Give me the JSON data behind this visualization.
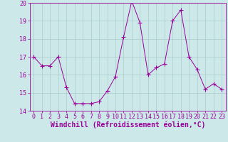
{
  "x": [
    0,
    1,
    2,
    3,
    4,
    5,
    6,
    7,
    8,
    9,
    10,
    11,
    12,
    13,
    14,
    15,
    16,
    17,
    18,
    19,
    20,
    21,
    22,
    23
  ],
  "y": [
    17.0,
    16.5,
    16.5,
    17.0,
    15.3,
    14.4,
    14.4,
    14.4,
    14.5,
    15.1,
    15.9,
    18.1,
    20.1,
    18.9,
    16.0,
    16.4,
    16.6,
    19.0,
    19.6,
    17.0,
    16.3,
    15.2,
    15.5,
    15.2
  ],
  "line_color": "#990099",
  "marker": "+",
  "marker_size": 4,
  "bg_color": "#cce8e8",
  "grid_color": "#aacccc",
  "xlabel": "Windchill (Refroidissement éolien,°C)",
  "xlabel_color": "#990099",
  "tick_color": "#990099",
  "spine_color": "#990099",
  "ylim": [
    14,
    20
  ],
  "yticks": [
    14,
    15,
    16,
    17,
    18,
    19,
    20
  ],
  "xticks": [
    0,
    1,
    2,
    3,
    4,
    5,
    6,
    7,
    8,
    9,
    10,
    11,
    12,
    13,
    14,
    15,
    16,
    17,
    18,
    19,
    20,
    21,
    22,
    23
  ],
  "tick_fontsize": 6,
  "label_fontsize": 7
}
